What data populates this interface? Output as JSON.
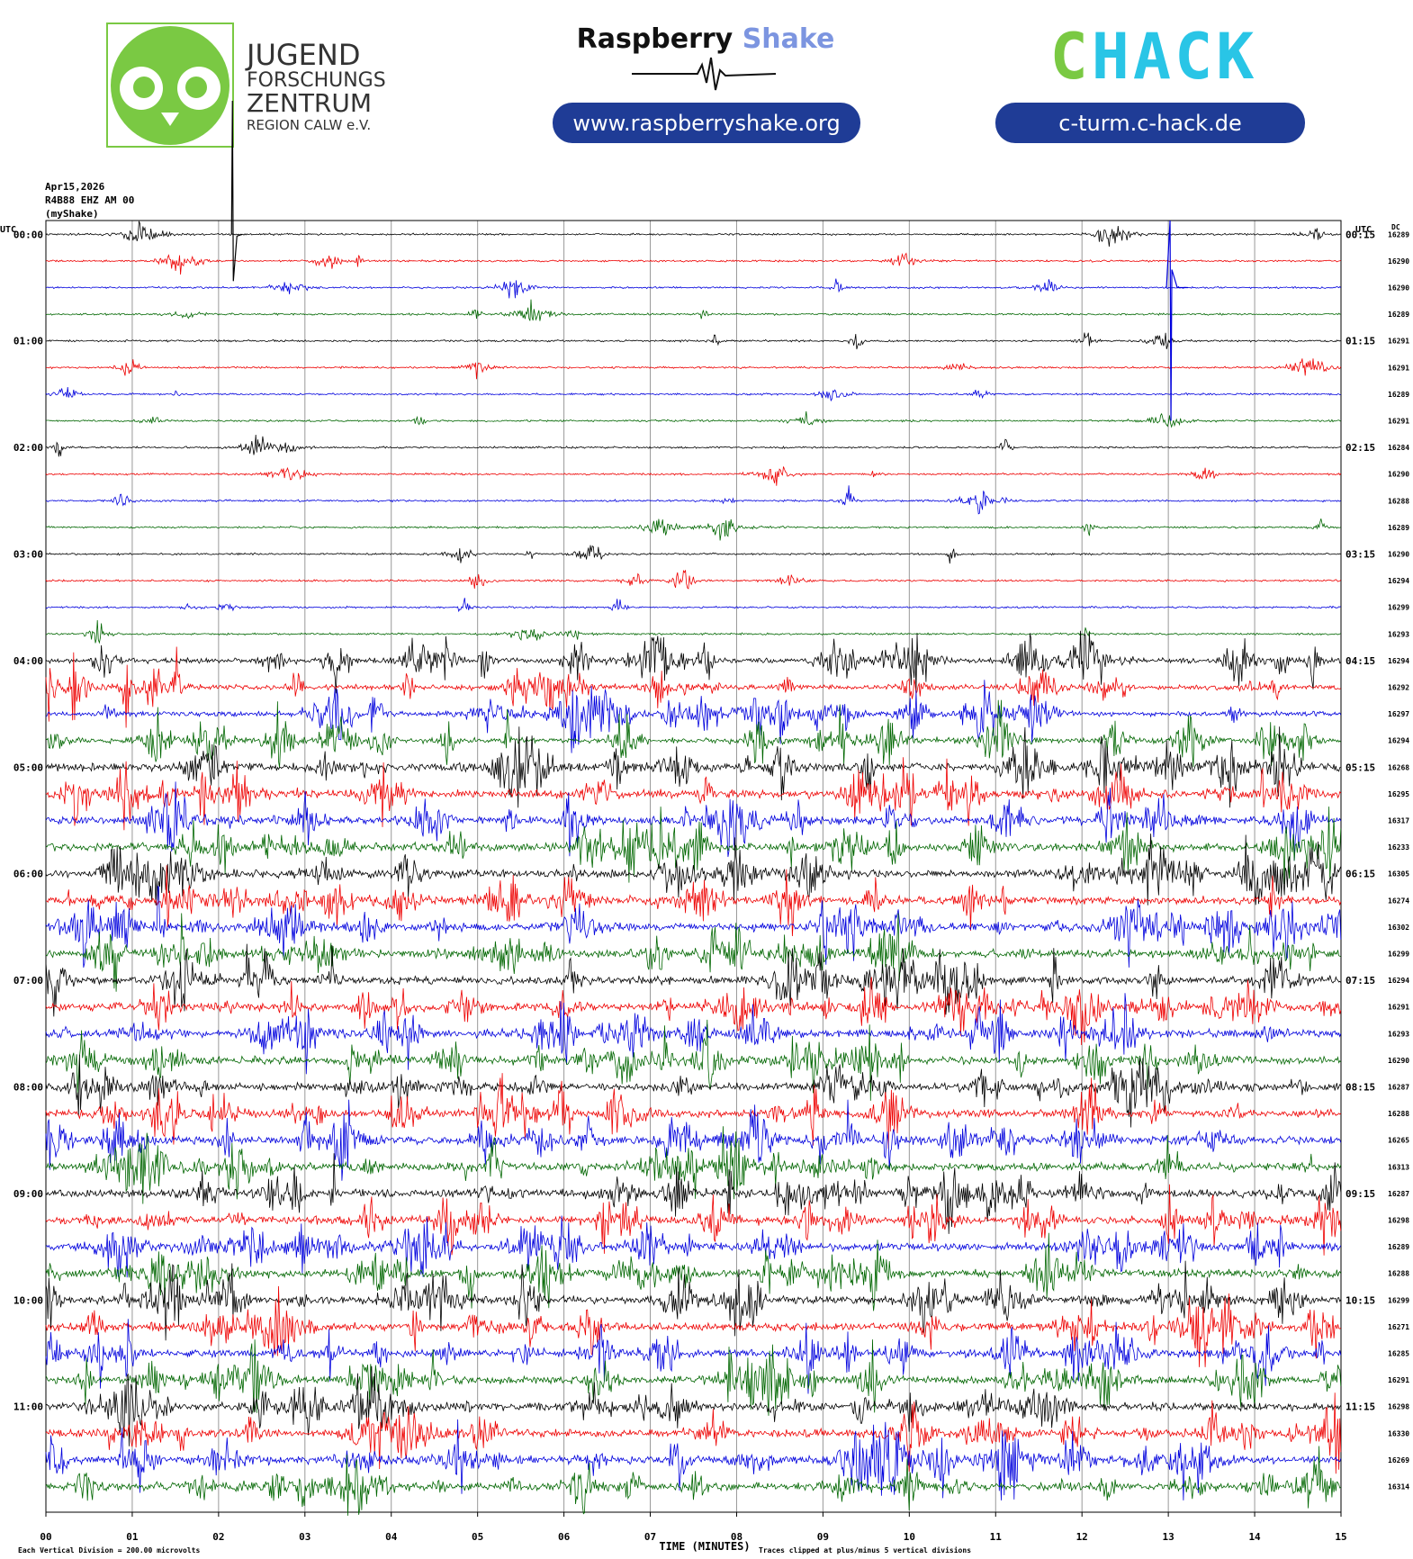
{
  "header": {
    "jfz": {
      "lines": [
        "JUGEND",
        "FORSCHUNGS",
        "ZENTRUM",
        "REGION CALW e.V."
      ]
    },
    "rs": {
      "name": [
        "Raspberry",
        "Shake"
      ],
      "url": "www.raspberryshake.org"
    },
    "chack": {
      "logo": [
        "C",
        "HACK"
      ],
      "url": "c-turm.c-hack.de"
    }
  },
  "info": [
    "Apr15,2026",
    "R4B88 EHZ AM 00",
    "(myShake)"
  ],
  "plot": {
    "left_title": "UTC",
    "right_title": "UTC",
    "dc_title": "DC",
    "left_labels": [
      "00:00",
      "01:00",
      "02:00",
      "03:00",
      "04:00",
      "05:00",
      "06:00",
      "07:00",
      "08:00",
      "09:00",
      "10:00",
      "11:00"
    ],
    "right_labels": [
      "00:15",
      "01:15",
      "02:15",
      "03:15",
      "04:15",
      "05:15",
      "06:15",
      "07:15",
      "08:15",
      "09:15",
      "10:15",
      "11:15"
    ],
    "dc": [
      16289,
      16290,
      16290,
      16289,
      16291,
      16291,
      16289,
      16291,
      16284,
      16290,
      16288,
      16289,
      16290,
      16294,
      16299,
      16293,
      16294,
      16292,
      16297,
      16294,
      16268,
      16295,
      16317,
      16233,
      16305,
      16274,
      16302,
      16299,
      16294,
      16291,
      16293,
      16290,
      16287,
      16288,
      16265,
      16313,
      16287,
      16298,
      16289,
      16288,
      16299,
      16271,
      16285,
      16291,
      16298,
      16330,
      16269,
      16314
    ],
    "x_labels": [
      "00",
      "01",
      "02",
      "03",
      "04",
      "05",
      "06",
      "07",
      "08",
      "09",
      "10",
      "11",
      "12",
      "13",
      "14",
      "15"
    ],
    "x_title": "TIME (MINUTES)",
    "footer_left": "Each Vertical Division =  200.00 microvolts",
    "footer_right": "Traces clipped at plus/minus 5 vertical divisions"
  }
}
